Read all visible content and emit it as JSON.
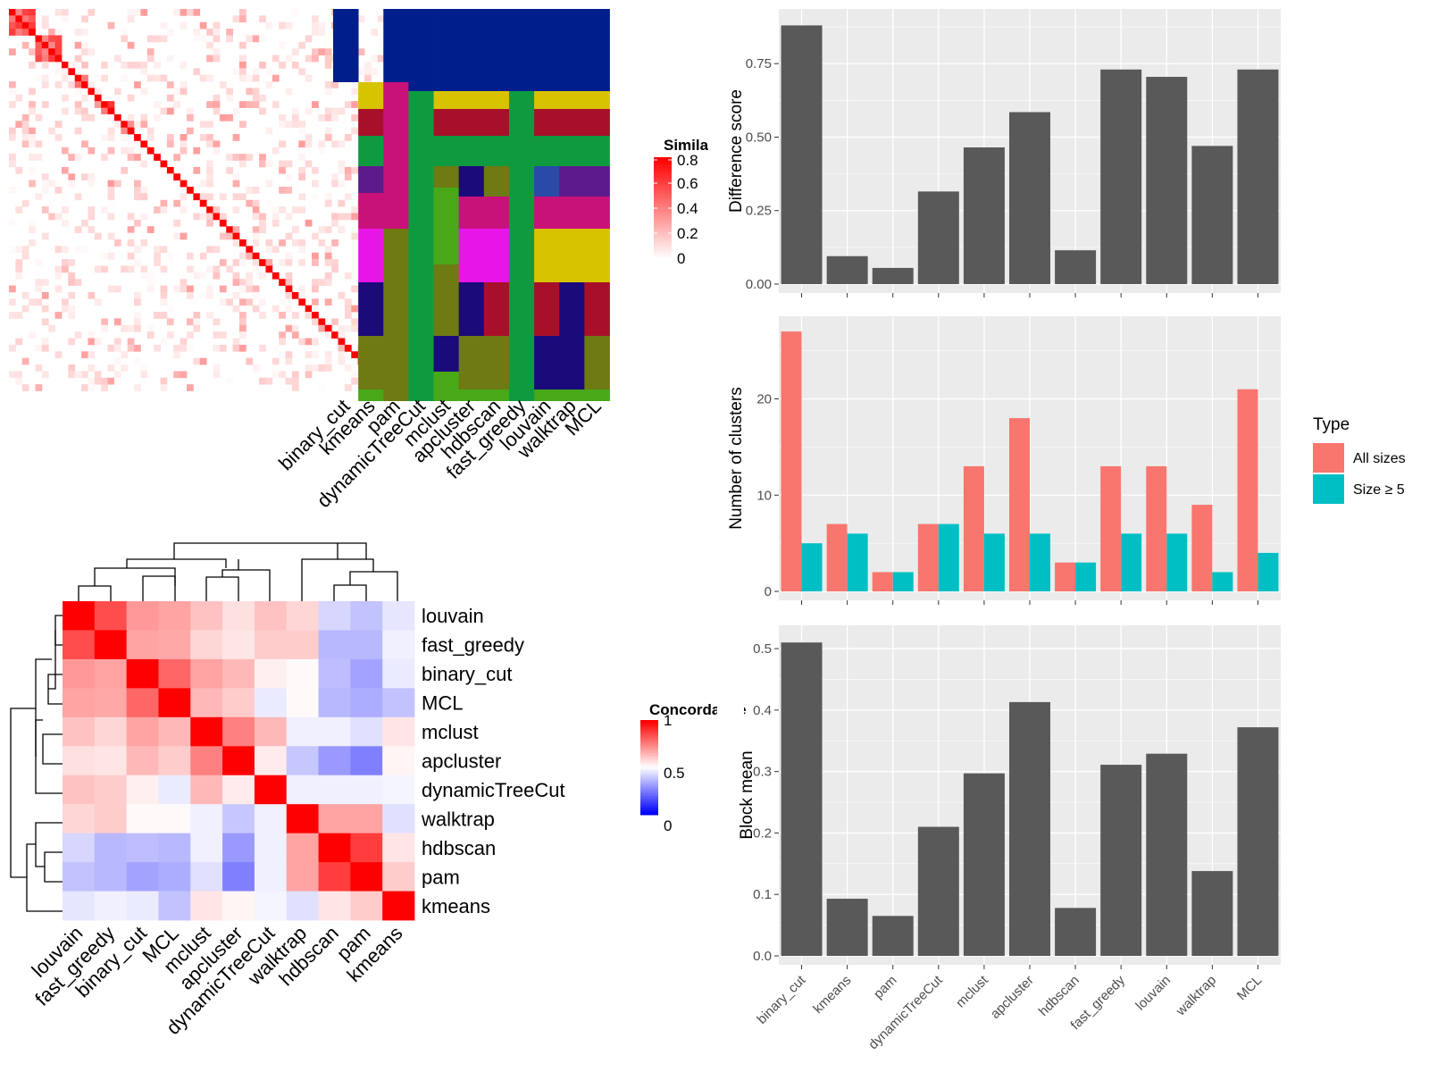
{
  "colors": {
    "bar_fill": "#595959",
    "panel_bg": "#ebebeb",
    "grid": "#ffffff",
    "all_sizes": "#f8766d",
    "size_ge5": "#00bfc4",
    "sim_high": "#ff0000",
    "sim_low": "#ffffff",
    "conc_high": "#ff0000",
    "conc_mid": "#ffffff",
    "conc_low": "#0000ff"
  },
  "method_colors": [
    "#001f8c",
    "#d8c300",
    "#a8102a",
    "#109a40",
    "#5c1a8c",
    "#c9117a",
    "#e815e8",
    "#6e7a12",
    "#1a0a7a",
    "#48a818",
    "#2a4aa8"
  ],
  "top_heatmap": {
    "legend_title": "Similarity",
    "legend_ticks": [
      "0.8",
      "0.6",
      "0.4",
      "0.2",
      "0"
    ]
  },
  "method_matrix": {
    "columns": [
      "binary_cut",
      "kmeans",
      "pam",
      "dynamicTreeCut",
      "mclust",
      "apcluster",
      "hdbscan",
      "fast_greedy",
      "louvain",
      "walktrap",
      "MCL"
    ]
  },
  "concordance": {
    "legend_title": "Concordance",
    "legend_ticks": [
      "1",
      "0.5",
      "0"
    ],
    "rows": [
      "louvain",
      "fast_greedy",
      "binary_cut",
      "MCL",
      "mclust",
      "apcluster",
      "dynamicTreeCut",
      "walktrap",
      "hdbscan",
      "pam",
      "kmeans"
    ],
    "columns": [
      "louvain",
      "fast_greedy",
      "binary_cut",
      "MCL",
      "mclust",
      "apcluster",
      "dynamicTreeCut",
      "walktrap",
      "hdbscan",
      "pam",
      "kmeans"
    ],
    "values": [
      [
        1.0,
        0.85,
        0.7,
        0.68,
        0.62,
        0.56,
        0.62,
        0.58,
        0.42,
        0.38,
        0.45
      ],
      [
        0.85,
        1.0,
        0.68,
        0.67,
        0.58,
        0.55,
        0.6,
        0.6,
        0.36,
        0.36,
        0.47
      ],
      [
        0.7,
        0.68,
        1.0,
        0.8,
        0.68,
        0.64,
        0.53,
        0.51,
        0.37,
        0.32,
        0.46
      ],
      [
        0.68,
        0.67,
        0.8,
        1.0,
        0.64,
        0.6,
        0.46,
        0.51,
        0.36,
        0.34,
        0.38
      ],
      [
        0.62,
        0.58,
        0.68,
        0.64,
        1.0,
        0.75,
        0.64,
        0.47,
        0.47,
        0.44,
        0.55
      ],
      [
        0.56,
        0.55,
        0.64,
        0.6,
        0.75,
        1.0,
        0.54,
        0.39,
        0.3,
        0.25,
        0.52
      ],
      [
        0.62,
        0.6,
        0.53,
        0.46,
        0.64,
        0.54,
        1.0,
        0.47,
        0.47,
        0.47,
        0.48
      ],
      [
        0.58,
        0.6,
        0.51,
        0.51,
        0.47,
        0.39,
        0.47,
        1.0,
        0.68,
        0.68,
        0.44
      ],
      [
        0.42,
        0.36,
        0.37,
        0.36,
        0.47,
        0.3,
        0.47,
        0.68,
        1.0,
        0.88,
        0.55
      ],
      [
        0.38,
        0.36,
        0.32,
        0.34,
        0.44,
        0.25,
        0.47,
        0.68,
        0.88,
        1.0,
        0.6
      ],
      [
        0.45,
        0.47,
        0.46,
        0.38,
        0.55,
        0.52,
        0.48,
        0.44,
        0.55,
        0.6,
        1.0
      ]
    ]
  },
  "chart_data": [
    {
      "type": "bar",
      "categories": [
        "binary_cut",
        "kmeans",
        "pam",
        "dynamicTreeCut",
        "mclust",
        "apcluster",
        "hdbscan",
        "fast_greedy",
        "louvain",
        "walktrap",
        "MCL"
      ],
      "values": [
        0.88,
        0.095,
        0.055,
        0.315,
        0.465,
        0.585,
        0.115,
        0.73,
        0.705,
        0.47,
        0.73
      ],
      "ylabel": "Difference score",
      "ylim": [
        0,
        0.93
      ],
      "yticks": [
        "0.00",
        "0.25",
        "0.50",
        "0.75"
      ],
      "grid": true
    },
    {
      "type": "bar",
      "categories": [
        "binary_cut",
        "kmeans",
        "pam",
        "dynamicTreeCut",
        "mclust",
        "apcluster",
        "hdbscan",
        "fast_greedy",
        "louvain",
        "walktrap",
        "MCL"
      ],
      "series": [
        {
          "name": "All sizes",
          "values": [
            27,
            7,
            2,
            7,
            13,
            18,
            3,
            13,
            13,
            9,
            21
          ]
        },
        {
          "name": "Size ≥ 5",
          "values": [
            5,
            6,
            2,
            7,
            6,
            6,
            3,
            6,
            6,
            2,
            4
          ]
        }
      ],
      "ylabel": "Number of clusters",
      "ylim": [
        0,
        28.4
      ],
      "yticks": [
        "0",
        "10",
        "20"
      ],
      "legend": {
        "title": "Type",
        "position": "right"
      },
      "grid": true
    },
    {
      "type": "bar",
      "categories": [
        "binary_cut",
        "kmeans",
        "pam",
        "dynamicTreeCut",
        "mclust",
        "apcluster",
        "hdbscan",
        "fast_greedy",
        "louvain",
        "walktrap",
        "MCL"
      ],
      "values": [
        0.51,
        0.093,
        0.065,
        0.21,
        0.297,
        0.413,
        0.078,
        0.311,
        0.329,
        0.138,
        0.372
      ],
      "ylabel": "Block mean",
      "ylim": [
        0,
        0.535
      ],
      "yticks": [
        "0.0",
        "0.1",
        "0.2",
        "0.3",
        "0.4",
        "0.5"
      ],
      "grid": true
    }
  ]
}
